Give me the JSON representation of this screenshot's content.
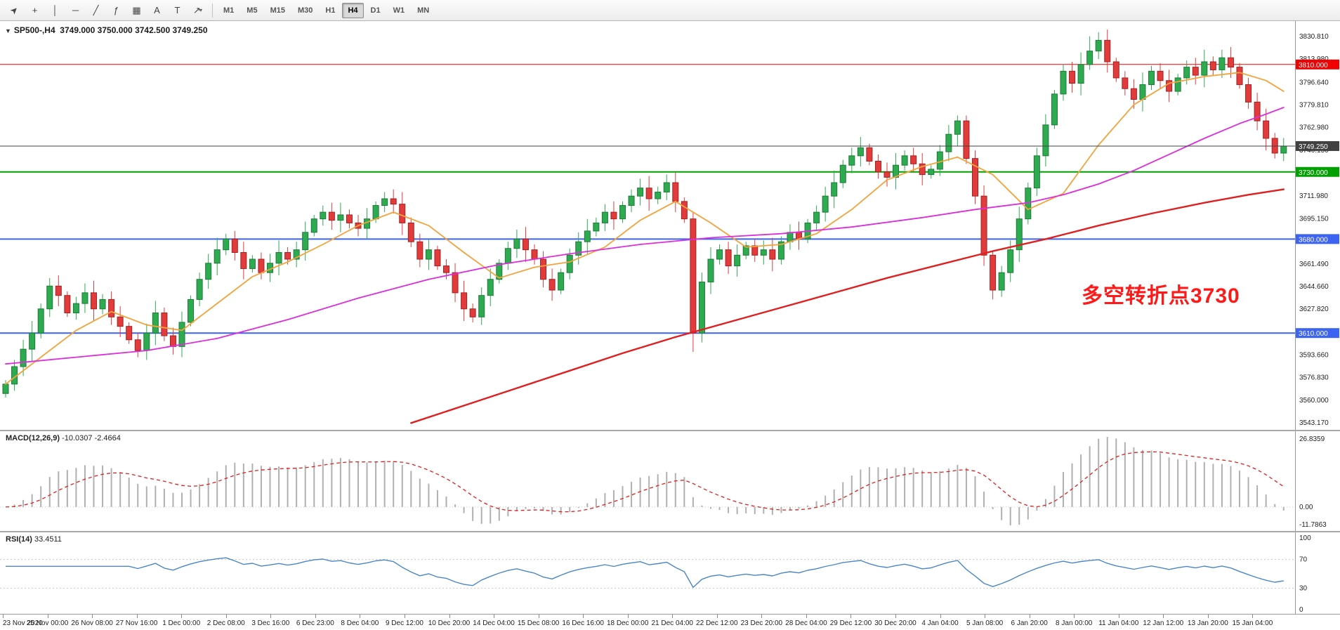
{
  "toolbar": {
    "tools": [
      {
        "name": "pointer-tool",
        "glyph": "➤",
        "rotate": true
      },
      {
        "name": "crosshair-tool",
        "glyph": "+",
        "rotate": false
      },
      {
        "name": "vertical-line-tool",
        "glyph": "│",
        "rotate": false
      },
      {
        "name": "horizontal-line-tool",
        "glyph": "─",
        "rotate": false
      },
      {
        "name": "trendline-tool",
        "glyph": "╱",
        "rotate": false
      },
      {
        "name": "fibonacci-tool",
        "glyph": "ƒ",
        "rotate": false
      },
      {
        "name": "shapes-tool",
        "glyph": "▦",
        "rotate": false
      },
      {
        "name": "text-tool",
        "glyph": "A",
        "rotate": false
      },
      {
        "name": "label-tool",
        "glyph": "T",
        "rotate": false
      },
      {
        "name": "arrows-tool",
        "glyph": "↗",
        "rotate": false
      }
    ],
    "arrows_dropdown_caret": "▾",
    "timeframes": [
      "M1",
      "M5",
      "M15",
      "M30",
      "H1",
      "H4",
      "D1",
      "W1",
      "MN"
    ],
    "active_timeframe": "H4"
  },
  "chart": {
    "one_click_glyph": "▼",
    "title_symbol": "SP500-,H4",
    "title_ohlc": "3749.000 3750.000 3742.500 3749.250",
    "annotation": {
      "text": "多空转折点3730",
      "color": "#ff1a1a"
    },
    "price_axis_ticks": [
      "3830.810",
      "3813.980",
      "3796.640",
      "3779.810",
      "3762.980",
      "3746.150",
      "3711.980",
      "3695.150",
      "3661.490",
      "3644.660",
      "3627.820",
      "3593.660",
      "3576.830",
      "3560.000",
      "3543.170"
    ],
    "time_axis_labels": [
      "23 Nov 2020",
      "25 Nov 00:00",
      "26 Nov 08:00",
      "27 Nov 16:00",
      "1 Dec 00:00",
      "2 Dec 08:00",
      "3 Dec 16:00",
      "6 Dec 23:00",
      "8 Dec 04:00",
      "9 Dec 12:00",
      "10 Dec 20:00",
      "14 Dec 04:00",
      "15 Dec 08:00",
      "16 Dec 16:00",
      "18 Dec 00:00",
      "21 Dec 04:00",
      "22 Dec 12:00",
      "23 Dec 20:00",
      "28 Dec 04:00",
      "29 Dec 12:00",
      "30 Dec 20:00",
      "4 Jan 04:00",
      "5 Jan 08:00",
      "6 Jan 20:00",
      "8 Jan 00:00",
      "11 Jan 04:00",
      "12 Jan 12:00",
      "13 Jan 20:00",
      "15 Jan 04:00"
    ]
  },
  "indicators": {
    "macd": {
      "name": "MACD(12,26,9)",
      "value_main": "-10.0307",
      "value_signal": "-2.4664",
      "axis": [
        "26.8359",
        "0.00",
        "-11.7863"
      ],
      "histogram_color": "#b0b0b0",
      "signal_color": "#e02020"
    },
    "rsi": {
      "name": "RSI(14)",
      "value": "33.4511",
      "axis": [
        "100",
        "70",
        "30",
        "0"
      ],
      "levels": [
        70,
        30
      ],
      "line_color": "#4a86c8"
    }
  },
  "chart_data": {
    "type": "candlestick",
    "symbol": "SP500-",
    "timeframe": "H4",
    "title": "SP500-,H4",
    "current_bar": {
      "open": 3749.0,
      "high": 3750.0,
      "low": 3742.5,
      "close": 3749.25
    },
    "price_axis_range": [
      3543.17,
      3830.81
    ],
    "x_range_labels": [
      "23 Nov 2020",
      "15 Jan 04:00"
    ],
    "ohlc_estimated": true,
    "first_open": 3565,
    "closes": [
      3572,
      3585,
      3598,
      3610,
      3628,
      3645,
      3638,
      3625,
      3632,
      3640,
      3628,
      3635,
      3622,
      3615,
      3605,
      3597,
      3610,
      3625,
      3608,
      3600,
      3618,
      3635,
      3650,
      3662,
      3672,
      3680,
      3670,
      3658,
      3665,
      3655,
      3662,
      3670,
      3665,
      3672,
      3685,
      3695,
      3700,
      3694,
      3698,
      3692,
      3688,
      3695,
      3705,
      3710,
      3706,
      3692,
      3678,
      3665,
      3672,
      3660,
      3655,
      3640,
      3628,
      3622,
      3638,
      3650,
      3662,
      3673,
      3680,
      3672,
      3665,
      3650,
      3642,
      3655,
      3668,
      3678,
      3686,
      3692,
      3700,
      3695,
      3705,
      3712,
      3718,
      3710,
      3715,
      3722,
      3708,
      3695,
      3610,
      3648,
      3665,
      3672,
      3660,
      3668,
      3675,
      3668,
      3672,
      3665,
      3678,
      3685,
      3680,
      3692,
      3700,
      3712,
      3722,
      3735,
      3742,
      3748,
      3738,
      3730,
      3726,
      3735,
      3742,
      3736,
      3728,
      3732,
      3745,
      3758,
      3768,
      3740,
      3712,
      3668,
      3642,
      3655,
      3672,
      3695,
      3718,
      3742,
      3765,
      3788,
      3805,
      3796,
      3810,
      3820,
      3828,
      3812,
      3800,
      3792,
      3784,
      3795,
      3805,
      3798,
      3790,
      3800,
      3808,
      3802,
      3812,
      3806,
      3815,
      3808,
      3795,
      3782,
      3768,
      3755,
      3744,
      3749.25
    ],
    "special_candles": {
      "78": {
        "low": 3596
      },
      "108": {
        "high": 3772
      },
      "112": {
        "low": 3635
      },
      "123": {
        "high": 3831
      }
    },
    "up_color": "#2eab50",
    "down_color": "#e23b3b",
    "hlines": [
      {
        "price": 3810.0,
        "label": "3810.000",
        "color": "#f00000",
        "width": 1
      },
      {
        "price": 3730.0,
        "label": "3730.000",
        "color": "#00a000",
        "width": 2
      },
      {
        "price": 3680.0,
        "label": "3680.000",
        "color": "#3c64f0",
        "width": 2
      },
      {
        "price": 3610.0,
        "label": "3610.000",
        "color": "#3c64f0",
        "width": 2
      }
    ],
    "bid_line": {
      "price": 3749.25,
      "label": "3749.250",
      "color": "#404040"
    },
    "ma_lines": [
      {
        "name": "ma-fast",
        "color": "#f2a33c",
        "width": 1.8,
        "points": [
          [
            0,
            3572
          ],
          [
            4,
            3592
          ],
          [
            8,
            3612
          ],
          [
            12,
            3626
          ],
          [
            16,
            3616
          ],
          [
            20,
            3612
          ],
          [
            24,
            3632
          ],
          [
            28,
            3652
          ],
          [
            32,
            3663
          ],
          [
            36,
            3676
          ],
          [
            40,
            3690
          ],
          [
            44,
            3700
          ],
          [
            48,
            3690
          ],
          [
            52,
            3670
          ],
          [
            56,
            3651
          ],
          [
            60,
            3659
          ],
          [
            64,
            3663
          ],
          [
            68,
            3674
          ],
          [
            72,
            3694
          ],
          [
            76,
            3708
          ],
          [
            80,
            3692
          ],
          [
            84,
            3674
          ],
          [
            88,
            3676
          ],
          [
            92,
            3684
          ],
          [
            96,
            3702
          ],
          [
            100,
            3724
          ],
          [
            104,
            3734
          ],
          [
            108,
            3741
          ],
          [
            112,
            3728
          ],
          [
            116,
            3702
          ],
          [
            120,
            3714
          ],
          [
            124,
            3750
          ],
          [
            128,
            3780
          ],
          [
            132,
            3796
          ],
          [
            136,
            3801
          ],
          [
            140,
            3804
          ],
          [
            143,
            3798
          ],
          [
            145,
            3790
          ]
        ]
      },
      {
        "name": "ma-mid",
        "color": "#db2fdb",
        "width": 1.8,
        "points": [
          [
            0,
            3587
          ],
          [
            8,
            3592
          ],
          [
            16,
            3597
          ],
          [
            24,
            3606
          ],
          [
            32,
            3620
          ],
          [
            40,
            3636
          ],
          [
            48,
            3650
          ],
          [
            56,
            3661
          ],
          [
            64,
            3669
          ],
          [
            72,
            3676
          ],
          [
            80,
            3681
          ],
          [
            88,
            3684
          ],
          [
            96,
            3689
          ],
          [
            104,
            3696
          ],
          [
            110,
            3702
          ],
          [
            116,
            3707
          ],
          [
            120,
            3713
          ],
          [
            124,
            3721
          ],
          [
            128,
            3731
          ],
          [
            132,
            3743
          ],
          [
            136,
            3755
          ],
          [
            140,
            3766
          ],
          [
            143,
            3773
          ],
          [
            145,
            3778
          ]
        ]
      },
      {
        "name": "ma-slow",
        "color": "#e02020",
        "width": 2.4,
        "points": [
          [
            46,
            3543
          ],
          [
            52,
            3556
          ],
          [
            58,
            3569
          ],
          [
            64,
            3582
          ],
          [
            70,
            3595
          ],
          [
            76,
            3607
          ],
          [
            82,
            3618
          ],
          [
            88,
            3629
          ],
          [
            94,
            3640
          ],
          [
            100,
            3651
          ],
          [
            106,
            3661
          ],
          [
            112,
            3671
          ],
          [
            118,
            3680
          ],
          [
            124,
            3690
          ],
          [
            130,
            3699
          ],
          [
            136,
            3707
          ],
          [
            141,
            3713
          ],
          [
            145,
            3717
          ]
        ]
      }
    ]
  }
}
